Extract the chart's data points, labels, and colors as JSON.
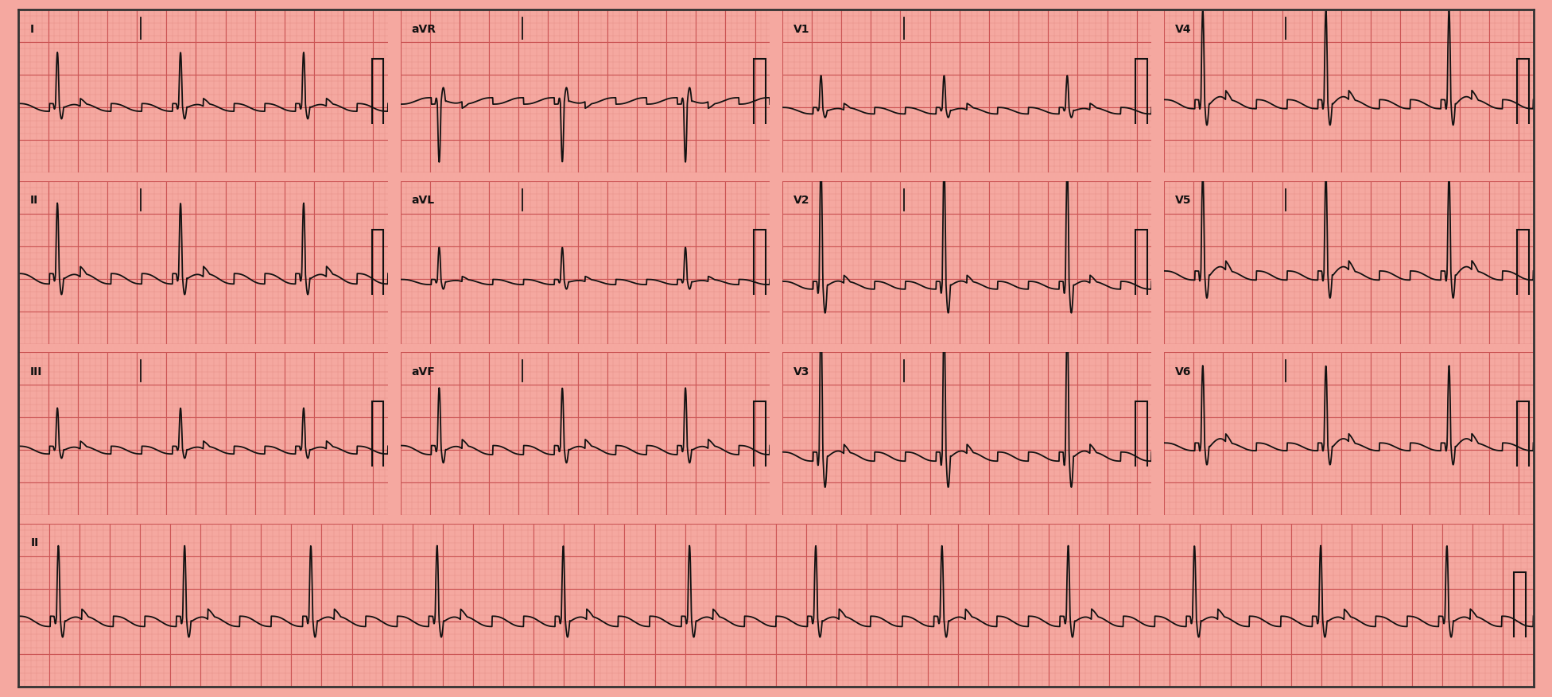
{
  "bg_color": "#F5A8A0",
  "grid_minor_color": "#E89088",
  "grid_major_color": "#CC5555",
  "ecg_color": "#111111",
  "fig_width": 19.52,
  "fig_height": 8.78,
  "dpi": 100,
  "leads_row1": [
    "I",
    "aVR",
    "V1",
    "V4"
  ],
  "leads_row2": [
    "II",
    "aVL",
    "V2",
    "V5"
  ],
  "leads_row3": [
    "III",
    "aVF",
    "V3",
    "V6"
  ],
  "rhythm_lead": "II",
  "atrial_rate": 288,
  "ventricular_rate": 72,
  "av_ratio": 4,
  "paper_speed": 25,
  "mm_per_mv": 10,
  "minor_grid_mm": 1,
  "major_grid_mm": 5
}
